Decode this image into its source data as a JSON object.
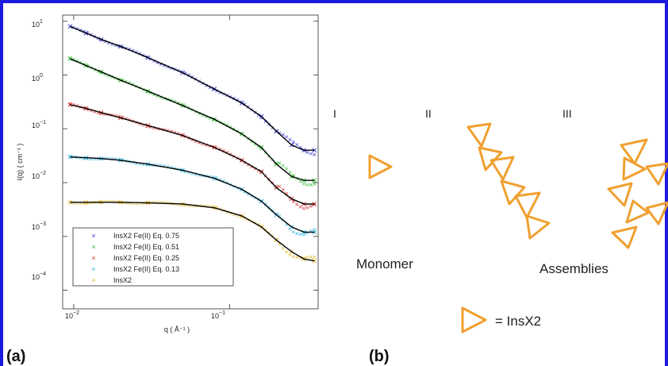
{
  "panel_a_label": "(a)",
  "panel_b_label": "(b)",
  "chart_data": {
    "type": "scatter",
    "xlabel": "q ( Å⁻¹ )",
    "ylabel": "I(q) ( cm⁻¹ )",
    "xscale": "log",
    "yscale": "log",
    "xlim": [
      0.0085,
      0.37
    ],
    "ylim": [
      4.5e-05,
      13
    ],
    "x_ticks": [
      {
        "base": "10",
        "exp": "−2",
        "value": 0.01
      },
      {
        "base": "10",
        "exp": "−1",
        "value": 0.1
      }
    ],
    "y_ticks": [
      {
        "base": "10",
        "exp": "1",
        "value": 10
      },
      {
        "base": "10",
        "exp": "0",
        "value": 1
      },
      {
        "base": "10",
        "exp": "−1",
        "value": 0.1
      },
      {
        "base": "10",
        "exp": "−2",
        "value": 0.01
      },
      {
        "base": "10",
        "exp": "−3",
        "value": 0.001
      },
      {
        "base": "10",
        "exp": "−4",
        "value": 0.0001
      }
    ],
    "legend_position": "bottom-left",
    "fit_line_color": "#000000",
    "series": [
      {
        "name": "InsX2 Fe(II) Eq. 0.75",
        "color": "#3b3bd6",
        "x": [
          0.0095,
          0.012,
          0.015,
          0.02,
          0.03,
          0.05,
          0.08,
          0.12,
          0.16,
          0.2,
          0.25,
          0.3,
          0.35
        ],
        "y": [
          8.0,
          6.0,
          4.6,
          3.4,
          2.1,
          1.1,
          0.55,
          0.3,
          0.17,
          0.09,
          0.05,
          0.04,
          0.04
        ]
      },
      {
        "name": "InsX2 Fe(II) Eq. 0.51",
        "color": "#2fbf2f",
        "x": [
          0.0095,
          0.012,
          0.015,
          0.02,
          0.03,
          0.05,
          0.08,
          0.12,
          0.16,
          0.2,
          0.25,
          0.3,
          0.35
        ],
        "y": [
          2.0,
          1.5,
          1.15,
          0.8,
          0.5,
          0.27,
          0.15,
          0.08,
          0.045,
          0.022,
          0.013,
          0.011,
          0.011
        ]
      },
      {
        "name": "InsX2 Fe(II) Eq. 0.25",
        "color": "#d63030",
        "x": [
          0.0095,
          0.012,
          0.015,
          0.02,
          0.03,
          0.05,
          0.08,
          0.12,
          0.16,
          0.2,
          0.25,
          0.3,
          0.35
        ],
        "y": [
          0.28,
          0.24,
          0.2,
          0.16,
          0.115,
          0.075,
          0.045,
          0.026,
          0.016,
          0.008,
          0.005,
          0.004,
          0.004
        ]
      },
      {
        "name": "InsX2 Fe(II) Eq. 0.13",
        "color": "#34b6e0",
        "x": [
          0.0095,
          0.012,
          0.015,
          0.02,
          0.03,
          0.05,
          0.08,
          0.12,
          0.16,
          0.2,
          0.25,
          0.3,
          0.35
        ],
        "y": [
          0.03,
          0.029,
          0.028,
          0.026,
          0.022,
          0.017,
          0.012,
          0.0075,
          0.0045,
          0.0025,
          0.0015,
          0.0012,
          0.0012
        ]
      },
      {
        "name": "InsX2",
        "color": "#e0b830",
        "x": [
          0.0095,
          0.012,
          0.015,
          0.02,
          0.03,
          0.05,
          0.08,
          0.12,
          0.16,
          0.2,
          0.25,
          0.3,
          0.35
        ],
        "y": [
          0.0043,
          0.0043,
          0.0043,
          0.0043,
          0.0042,
          0.004,
          0.0034,
          0.0024,
          0.0015,
          0.00085,
          0.00052,
          0.00038,
          0.00035
        ]
      }
    ]
  },
  "schematic": {
    "roman_labels": [
      "I",
      "II",
      "III"
    ],
    "monomer_label": "Monomer",
    "assemblies_label": "Assemblies",
    "legend_text": "= InsX2",
    "triangle_color": "#f0a030"
  }
}
